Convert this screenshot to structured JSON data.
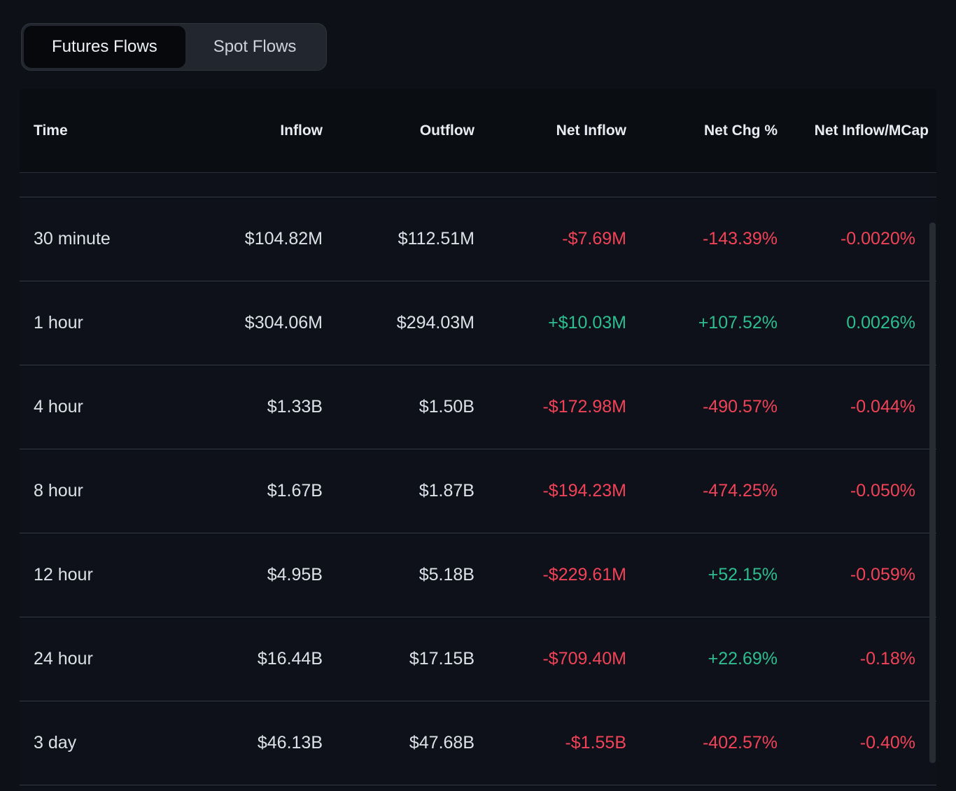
{
  "tabs": [
    {
      "label": "Futures Flows",
      "active": true
    },
    {
      "label": "Spot Flows",
      "active": false
    }
  ],
  "colors": {
    "positive": "#2ebd8f",
    "negative": "#f04357"
  },
  "table": {
    "columns": [
      "Time",
      "Inflow",
      "Outflow",
      "Net Inflow",
      "Net Chg %",
      "Net Inflow/MCap"
    ],
    "rows": [
      {
        "time": "30 minute",
        "inflow": "$104.82M",
        "outflow": "$112.51M",
        "net_inflow": {
          "text": "-$7.69M",
          "dir": "neg"
        },
        "net_chg": {
          "text": "-143.39%",
          "dir": "neg"
        },
        "net_mcap": {
          "text": "-0.0020%",
          "dir": "neg"
        }
      },
      {
        "time": "1 hour",
        "inflow": "$304.06M",
        "outflow": "$294.03M",
        "net_inflow": {
          "text": "+$10.03M",
          "dir": "pos"
        },
        "net_chg": {
          "text": "+107.52%",
          "dir": "pos"
        },
        "net_mcap": {
          "text": "0.0026%",
          "dir": "pos"
        }
      },
      {
        "time": "4 hour",
        "inflow": "$1.33B",
        "outflow": "$1.50B",
        "net_inflow": {
          "text": "-$172.98M",
          "dir": "neg"
        },
        "net_chg": {
          "text": "-490.57%",
          "dir": "neg"
        },
        "net_mcap": {
          "text": "-0.044%",
          "dir": "neg"
        }
      },
      {
        "time": "8 hour",
        "inflow": "$1.67B",
        "outflow": "$1.87B",
        "net_inflow": {
          "text": "-$194.23M",
          "dir": "neg"
        },
        "net_chg": {
          "text": "-474.25%",
          "dir": "neg"
        },
        "net_mcap": {
          "text": "-0.050%",
          "dir": "neg"
        }
      },
      {
        "time": "12 hour",
        "inflow": "$4.95B",
        "outflow": "$5.18B",
        "net_inflow": {
          "text": "-$229.61M",
          "dir": "neg"
        },
        "net_chg": {
          "text": "+52.15%",
          "dir": "pos"
        },
        "net_mcap": {
          "text": "-0.059%",
          "dir": "neg"
        }
      },
      {
        "time": "24 hour",
        "inflow": "$16.44B",
        "outflow": "$17.15B",
        "net_inflow": {
          "text": "-$709.40M",
          "dir": "neg"
        },
        "net_chg": {
          "text": "+22.69%",
          "dir": "pos"
        },
        "net_mcap": {
          "text": "-0.18%",
          "dir": "neg"
        }
      },
      {
        "time": "3 day",
        "inflow": "$46.13B",
        "outflow": "$47.68B",
        "net_inflow": {
          "text": "-$1.55B",
          "dir": "neg"
        },
        "net_chg": {
          "text": "-402.57%",
          "dir": "neg"
        },
        "net_mcap": {
          "text": "-0.40%",
          "dir": "neg"
        }
      }
    ]
  }
}
